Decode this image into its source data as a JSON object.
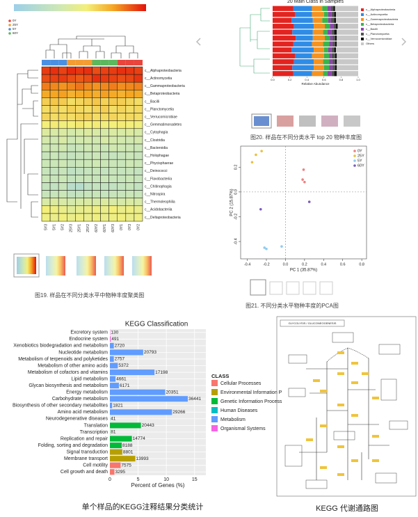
{
  "chart_data": [
    {
      "type": "heatmap",
      "rows": [
        "c__Alphaproteobacteria",
        "c__Actinomycetia",
        "c__Gammaproteobacteria",
        "c__Betaproteobacteria",
        "c__Bacilli",
        "c__Planctomycetia",
        "c__Verrucomicrobiae",
        "c__Gemmatimonadetes",
        "c__Cytophagia",
        "c__Clostridia",
        "c__Bacteroidia",
        "c__Holophagae",
        "c__Phycisphaerae",
        "c__Deinococci",
        "c__Flavobacteriia",
        "c__Chitinophagia",
        "c__Nitrospira",
        "c__Thermoleophilia",
        "c__Acidobacteriia",
        "c__Deltaproteobacteria"
      ],
      "columns": [
        "5Y3",
        "5Y1",
        "5Y2",
        "25Y3",
        "25Y1",
        "25Y2",
        "60Y2",
        "60Y1",
        "60Y3",
        "0Y1",
        "0Y3",
        "0Y2"
      ],
      "groups": [
        {
          "name": "0Y",
          "color": "#e8453c"
        },
        {
          "name": "25Y",
          "color": "#f39c34"
        },
        {
          "name": "5Y",
          "color": "#4a90e2"
        },
        {
          "name": "60Y",
          "color": "#5cb85c"
        }
      ],
      "column_colors": [
        "#4a90e2",
        "#4a90e2",
        "#4a90e2",
        "#f39c34",
        "#f39c34",
        "#f39c34",
        "#5cb85c",
        "#5cb85c",
        "#5cb85c",
        "#e8453c",
        "#e8453c",
        "#e8453c"
      ],
      "values": [
        [
          0.93,
          0.95,
          0.92,
          0.96,
          0.94,
          0.95,
          0.9,
          0.92,
          0.93,
          0.95,
          0.94,
          0.92
        ],
        [
          0.9,
          0.92,
          0.93,
          0.9,
          0.88,
          0.9,
          0.95,
          0.93,
          0.92,
          0.9,
          0.91,
          0.94
        ],
        [
          0.82,
          0.8,
          0.78,
          0.8,
          0.83,
          0.8,
          0.78,
          0.8,
          0.82,
          0.79,
          0.8,
          0.81
        ],
        [
          0.74,
          0.75,
          0.76,
          0.72,
          0.74,
          0.75,
          0.73,
          0.76,
          0.74,
          0.72,
          0.75,
          0.74
        ],
        [
          0.64,
          0.66,
          0.65,
          0.6,
          0.62,
          0.64,
          0.66,
          0.63,
          0.65,
          0.64,
          0.62,
          0.6
        ],
        [
          0.6,
          0.62,
          0.6,
          0.63,
          0.61,
          0.6,
          0.62,
          0.64,
          0.6,
          0.62,
          0.6,
          0.61
        ],
        [
          0.62,
          0.6,
          0.61,
          0.6,
          0.62,
          0.63,
          0.6,
          0.61,
          0.62,
          0.6,
          0.61,
          0.6
        ],
        [
          0.55,
          0.56,
          0.54,
          0.55,
          0.57,
          0.55,
          0.56,
          0.54,
          0.55,
          0.56,
          0.55,
          0.54
        ],
        [
          0.42,
          0.4,
          0.41,
          0.38,
          0.4,
          0.42,
          0.4,
          0.39,
          0.41,
          0.4,
          0.42,
          0.4
        ],
        [
          0.38,
          0.36,
          0.4,
          0.35,
          0.37,
          0.38,
          0.36,
          0.4,
          0.38,
          0.37,
          0.36,
          0.38
        ],
        [
          0.35,
          0.34,
          0.36,
          0.3,
          0.32,
          0.35,
          0.34,
          0.33,
          0.36,
          0.35,
          0.34,
          0.33
        ],
        [
          0.3,
          0.32,
          0.3,
          0.28,
          0.3,
          0.31,
          0.33,
          0.3,
          0.29,
          0.3,
          0.32,
          0.3
        ],
        [
          0.33,
          0.32,
          0.34,
          0.3,
          0.32,
          0.33,
          0.35,
          0.33,
          0.32,
          0.31,
          0.34,
          0.33
        ],
        [
          0.3,
          0.28,
          0.3,
          0.25,
          0.27,
          0.29,
          0.3,
          0.28,
          0.3,
          0.29,
          0.3,
          0.28
        ],
        [
          0.32,
          0.3,
          0.33,
          0.28,
          0.3,
          0.31,
          0.3,
          0.32,
          0.31,
          0.3,
          0.33,
          0.3
        ],
        [
          0.28,
          0.26,
          0.3,
          0.2,
          0.18,
          0.25,
          0.28,
          0.27,
          0.26,
          0.28,
          0.3,
          0.27
        ],
        [
          0.3,
          0.3,
          0.32,
          0.27,
          0.28,
          0.3,
          0.31,
          0.29,
          0.3,
          0.3,
          0.32,
          0.31
        ],
        [
          0.4,
          0.42,
          0.4,
          0.38,
          0.4,
          0.41,
          0.4,
          0.42,
          0.4,
          0.39,
          0.41,
          0.4
        ],
        [
          0.55,
          0.52,
          0.5,
          0.45,
          0.48,
          0.5,
          0.52,
          0.5,
          0.55,
          0.5,
          0.52,
          0.5
        ],
        [
          0.52,
          0.5,
          0.54,
          0.5,
          0.52,
          0.5,
          0.53,
          0.5,
          0.52,
          0.54,
          0.5,
          0.52
        ]
      ],
      "caption": "图19. 样品在不同分类水平中物种丰度聚类图"
    },
    {
      "type": "stacked-bar",
      "title": "20 Main Class in Samples",
      "x_label": "Relative Abundance",
      "categories": [
        null,
        null,
        null,
        null,
        null,
        null,
        null,
        null,
        null,
        null,
        null,
        null
      ],
      "series": [
        {
          "name": "c__Alphaproteobacteria",
          "color": "#e3231f",
          "values": [
            0.24,
            0.26,
            0.22,
            0.25,
            0.23,
            0.27,
            0.24,
            0.22,
            0.26,
            0.25,
            0.23,
            0.24
          ]
        },
        {
          "name": "c__Actinomycetia",
          "color": "#2e8ce6",
          "values": [
            0.22,
            0.2,
            0.25,
            0.23,
            0.24,
            0.2,
            0.22,
            0.26,
            0.2,
            0.23,
            0.25,
            0.22
          ]
        },
        {
          "name": "c__Gammaproteobacteria",
          "color": "#f6921e",
          "values": [
            0.12,
            0.14,
            0.11,
            0.13,
            0.12,
            0.14,
            0.13,
            0.12,
            0.14,
            0.11,
            0.12,
            0.13
          ]
        },
        {
          "name": "c__Betaproteobacteria",
          "color": "#39b54a",
          "values": [
            0.06,
            0.05,
            0.07,
            0.06,
            0.05,
            0.06,
            0.07,
            0.05,
            0.06,
            0.07,
            0.06,
            0.05
          ]
        },
        {
          "name": "c__Bacilli",
          "color": "#8e44ad",
          "values": [
            0.04,
            0.04,
            0.03,
            0.04,
            0.05,
            0.03,
            0.04,
            0.04,
            0.03,
            0.04,
            0.04,
            0.05
          ]
        },
        {
          "name": "c__Planctomycetia",
          "color": "#555555",
          "values": [
            0.03,
            0.03,
            0.04,
            0.03,
            0.03,
            0.03,
            0.03,
            0.03,
            0.04,
            0.03,
            0.03,
            0.03
          ]
        },
        {
          "name": "c__Verrucomicrobiae",
          "color": "#111111",
          "values": [
            0.02,
            0.02,
            0.02,
            0.02,
            0.03,
            0.02,
            0.02,
            0.02,
            0.02,
            0.02,
            0.02,
            0.03
          ]
        },
        {
          "name": "Others",
          "color": "#c8c8c8",
          "values": [
            0.27,
            0.26,
            0.26,
            0.24,
            0.25,
            0.25,
            0.25,
            0.26,
            0.25,
            0.25,
            0.25,
            0.25
          ]
        }
      ],
      "xlim": [
        0,
        1
      ],
      "xticks": [
        {
          "value": 0,
          "label": "0.0"
        },
        0.2,
        0.4,
        0.6,
        0.8,
        {
          "value": 1,
          "label": "1.0"
        }
      ],
      "caption": "图20. 样品在不同分类水平 top 20 物种丰度图"
    },
    {
      "type": "scatter",
      "x_label": "PC 1 (35.87%)",
      "y_label": "PC 2 (15.87%)",
      "series": [
        {
          "name": "0Y",
          "color": "#f08080",
          "x": [
            0.19,
            0.18,
            0.2
          ],
          "values": [
            0.18,
            0.1,
            0.08
          ]
        },
        {
          "name": "25Y",
          "color": "#e8c040",
          "x": [
            -0.25,
            -0.31,
            -0.35
          ],
          "values": [
            0.33,
            0.3,
            0.24
          ]
        },
        {
          "name": "5Y",
          "color": "#8fcbee",
          "x": [
            -0.22,
            -0.2,
            -0.04
          ],
          "values": [
            -0.45,
            -0.46,
            -0.44
          ]
        },
        {
          "name": "60Y",
          "color": "#7a5cc0",
          "x": [
            -0.26,
            0.25
          ],
          "values": [
            -0.14,
            -0.08
          ]
        }
      ],
      "xlim": [
        -0.47,
        0.85
      ],
      "ylim": [
        -0.54,
        0.37
      ],
      "xticks": [
        -0.4,
        -0.2,
        {
          "value": 0,
          "label": "0.0"
        },
        0.2,
        0.4,
        0.6,
        0.8
      ],
      "yticks": [
        -0.4,
        -0.2,
        {
          "value": 0,
          "label": "0.0"
        },
        0.2
      ],
      "caption": "图21. 不同分类水平物种丰度的PCA图"
    },
    {
      "type": "hbar",
      "title": "KEGG Classification",
      "x_label": "Percent of Genes (%)",
      "legend_title": "CLASS",
      "categories": [
        "Excretory system",
        "Endocrine system",
        "Xenobiotics biodegradation and metabolism",
        "Nucleotide metabolism",
        "Metabolism of terpenoids and polyketides",
        "Metabolism of other amino acids",
        "Metabolism of cofactors and vitamins",
        "Lipid metabolism",
        "Glycan biosynthesis and metabolism",
        "Energy metabolism",
        "Carbohydrate metabolism",
        "Biosynthesis of other secondary metabolites",
        "Amino acid metabolism",
        "Neurodegenerative diseases",
        "Translation",
        "Transcription",
        "Replication and repair",
        "Folding, sorting and degradation",
        "Signal transduction",
        "Membrane transport",
        "Cell motility",
        "Cell growth and death"
      ],
      "counts": [
        130,
        491,
        2720,
        20793,
        2757,
        5372,
        17198,
        4661,
        6171,
        20351,
        36441,
        1821,
        29266,
        41,
        20443,
        81,
        14774,
        8188,
        8801,
        13993,
        7575,
        3295
      ],
      "series": [
        {
          "name": "Cellular Processes",
          "color": "#F8766D",
          "values": [
            null,
            null,
            null,
            null,
            null,
            null,
            null,
            null,
            null,
            null,
            null,
            null,
            null,
            null,
            null,
            null,
            null,
            null,
            null,
            null,
            1.9,
            0.8
          ]
        },
        {
          "name": "Environmental Information P",
          "color": "#B79F00",
          "values": [
            null,
            null,
            null,
            null,
            null,
            null,
            null,
            null,
            null,
            null,
            null,
            null,
            null,
            null,
            null,
            null,
            null,
            null,
            2.2,
            4.5,
            null,
            null
          ]
        },
        {
          "name": "Genetic Information Process",
          "color": "#00BA38",
          "values": [
            null,
            null,
            null,
            null,
            null,
            null,
            null,
            null,
            null,
            null,
            null,
            null,
            null,
            null,
            5.5,
            0.03,
            3.9,
            2.1,
            null,
            null,
            null,
            null
          ]
        },
        {
          "name": "Human Diseases",
          "color": "#00BFC4",
          "values": [
            null,
            null,
            null,
            null,
            null,
            null,
            null,
            null,
            null,
            null,
            null,
            null,
            null,
            0.02,
            null,
            null,
            null,
            null,
            null,
            null,
            null,
            null
          ]
        },
        {
          "name": "Metabolism",
          "color": "#619CFF",
          "values": [
            null,
            null,
            0.7,
            5.9,
            0.7,
            1.4,
            7.9,
            1.0,
            1.6,
            9.8,
            13.8,
            0.4,
            11.0,
            null,
            null,
            null,
            null,
            null,
            null,
            null,
            null,
            null
          ]
        },
        {
          "name": "Organismal Systems",
          "color": "#F564E3",
          "values": [
            0.05,
            0.15,
            null,
            null,
            null,
            null,
            null,
            null,
            null,
            null,
            null,
            null,
            null,
            null,
            null,
            null,
            null,
            null,
            null,
            null,
            null,
            null
          ]
        }
      ],
      "xlim": [
        0,
        17
      ],
      "xticks": [
        0,
        5,
        10,
        15
      ],
      "caption": "单个样品的KEGG注释结果分类统计"
    }
  ],
  "pathway_map": {
    "title": "GLYCOLYSIS / GLUCONEOGENESIS",
    "caption": "KEGG 代谢通路图"
  }
}
